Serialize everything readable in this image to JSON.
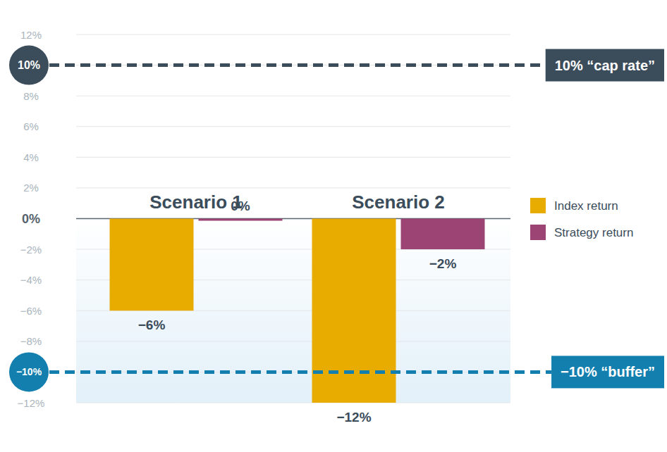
{
  "chart_data": {
    "type": "bar",
    "categories": [
      "Scenario 1",
      "Scenario 2"
    ],
    "series": [
      {
        "name": "Index return",
        "color": "#e8ac00",
        "values": [
          -6,
          -12
        ],
        "value_labels": [
          "−6%",
          "−12%"
        ]
      },
      {
        "name": "Strategy return",
        "color": "#9c4574",
        "values": [
          0,
          -2
        ],
        "value_labels": [
          "0%",
          "−2%"
        ]
      }
    ],
    "ylim": [
      -12,
      12
    ],
    "yticks": [
      {
        "value": -12,
        "label": "−12%"
      },
      {
        "value": -10,
        "label": "−10%"
      },
      {
        "value": -8,
        "label": "−8%"
      },
      {
        "value": -6,
        "label": "−6%"
      },
      {
        "value": -4,
        "label": "−4%"
      },
      {
        "value": -2,
        "label": "−2%"
      },
      {
        "value": 0,
        "label": "0%"
      },
      {
        "value": 2,
        "label": "2%"
      },
      {
        "value": 4,
        "label": "4%"
      },
      {
        "value": 6,
        "label": "6%"
      },
      {
        "value": 8,
        "label": "8%"
      },
      {
        "value": 10,
        "label": "10%"
      },
      {
        "value": 12,
        "label": "12%"
      }
    ],
    "annotations": [
      {
        "value": 10,
        "label": "10% “cap rate”"
      },
      {
        "value": -10,
        "label": "−10% “buffer”"
      }
    ],
    "grid": true,
    "legend": "right",
    "data_labels": true
  }
}
